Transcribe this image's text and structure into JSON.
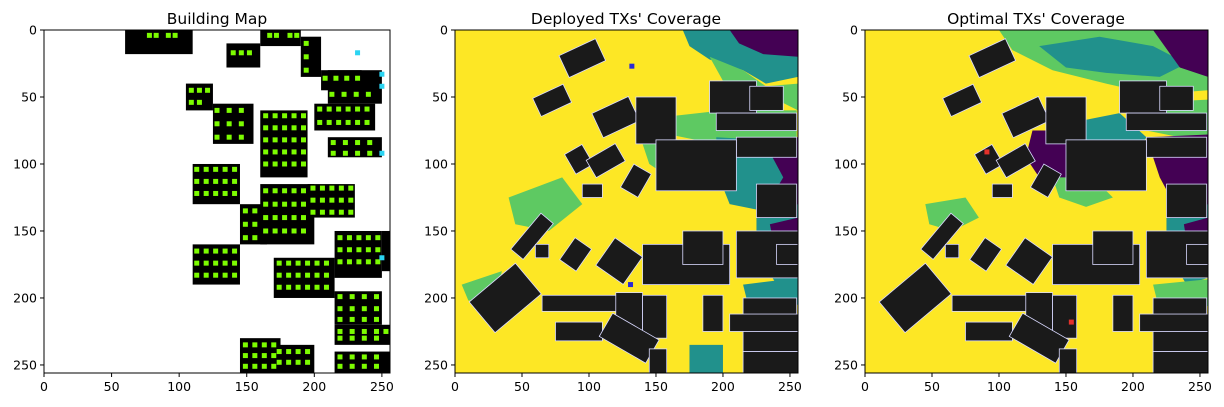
{
  "chart_data": [
    {
      "type": "heatmap",
      "title": "Building Map",
      "xlabel": "",
      "ylabel": "",
      "xlim": [
        0,
        256
      ],
      "ylim": [
        256,
        0
      ],
      "xticks": [
        0,
        50,
        100,
        150,
        200,
        250
      ],
      "yticks": [
        0,
        50,
        100,
        150,
        200,
        250
      ],
      "colors": {
        "background": "#ffffff",
        "building": "#000000",
        "candidate": "#7cfc00",
        "candidate_alt": "#2bd4f2"
      },
      "buildings": [
        [
          60,
          0,
          110,
          18
        ],
        [
          160,
          0,
          190,
          12
        ],
        [
          135,
          10,
          160,
          28
        ],
        [
          190,
          5,
          205,
          35
        ],
        [
          205,
          30,
          235,
          45
        ],
        [
          210,
          30,
          250,
          55
        ],
        [
          105,
          40,
          125,
          60
        ],
        [
          125,
          55,
          155,
          85
        ],
        [
          160,
          60,
          195,
          110
        ],
        [
          200,
          55,
          245,
          75
        ],
        [
          210,
          80,
          250,
          95
        ],
        [
          195,
          115,
          230,
          140
        ],
        [
          160,
          115,
          200,
          160
        ],
        [
          145,
          130,
          165,
          160
        ],
        [
          110,
          100,
          145,
          130
        ],
        [
          110,
          160,
          145,
          190
        ],
        [
          170,
          170,
          215,
          200
        ],
        [
          215,
          150,
          250,
          185
        ],
        [
          250,
          150,
          256,
          180
        ],
        [
          215,
          195,
          250,
          220
        ],
        [
          215,
          220,
          256,
          235
        ],
        [
          215,
          240,
          256,
          256
        ],
        [
          170,
          235,
          200,
          256
        ],
        [
          145,
          230,
          175,
          256
        ]
      ],
      "candidates": [
        [
          78,
          4
        ],
        [
          83,
          4
        ],
        [
          92,
          4
        ],
        [
          97,
          4
        ],
        [
          167,
          4
        ],
        [
          172,
          4
        ],
        [
          182,
          4
        ],
        [
          187,
          4
        ],
        [
          140,
          17
        ],
        [
          146,
          17
        ],
        [
          152,
          17
        ],
        [
          194,
          10
        ],
        [
          194,
          20
        ],
        [
          194,
          30
        ],
        [
          208,
          36
        ],
        [
          216,
          36
        ],
        [
          224,
          36
        ],
        [
          232,
          36
        ],
        [
          213,
          48
        ],
        [
          222,
          48
        ],
        [
          231,
          48
        ],
        [
          240,
          48
        ],
        [
          109,
          45
        ],
        [
          115,
          45
        ],
        [
          121,
          45
        ],
        [
          109,
          54
        ],
        [
          115,
          54
        ],
        [
          128,
          60
        ],
        [
          137,
          60
        ],
        [
          146,
          60
        ],
        [
          128,
          70
        ],
        [
          137,
          70
        ],
        [
          146,
          70
        ],
        [
          128,
          80
        ],
        [
          137,
          80
        ],
        [
          146,
          80
        ],
        [
          164,
          64
        ],
        [
          171,
          64
        ],
        [
          178,
          64
        ],
        [
          185,
          64
        ],
        [
          192,
          64
        ],
        [
          164,
          73
        ],
        [
          171,
          73
        ],
        [
          178,
          73
        ],
        [
          185,
          73
        ],
        [
          192,
          73
        ],
        [
          164,
          82
        ],
        [
          171,
          82
        ],
        [
          178,
          82
        ],
        [
          185,
          82
        ],
        [
          192,
          82
        ],
        [
          164,
          91
        ],
        [
          171,
          91
        ],
        [
          178,
          91
        ],
        [
          185,
          91
        ],
        [
          192,
          91
        ],
        [
          164,
          100
        ],
        [
          171,
          100
        ],
        [
          178,
          100
        ],
        [
          185,
          100
        ],
        [
          192,
          100
        ],
        [
          204,
          59
        ],
        [
          211,
          59
        ],
        [
          218,
          59
        ],
        [
          225,
          59
        ],
        [
          232,
          59
        ],
        [
          239,
          59
        ],
        [
          204,
          69
        ],
        [
          211,
          69
        ],
        [
          218,
          69
        ],
        [
          225,
          69
        ],
        [
          232,
          69
        ],
        [
          239,
          69
        ],
        [
          214,
          84
        ],
        [
          223,
          84
        ],
        [
          232,
          84
        ],
        [
          241,
          84
        ],
        [
          214,
          92
        ],
        [
          223,
          92
        ],
        [
          232,
          92
        ],
        [
          241,
          92
        ],
        [
          199,
          118
        ],
        [
          206,
          118
        ],
        [
          213,
          118
        ],
        [
          220,
          118
        ],
        [
          227,
          118
        ],
        [
          199,
          127
        ],
        [
          206,
          127
        ],
        [
          213,
          127
        ],
        [
          220,
          127
        ],
        [
          227,
          127
        ],
        [
          199,
          136
        ],
        [
          206,
          136
        ],
        [
          213,
          136
        ],
        [
          220,
          136
        ],
        [
          227,
          136
        ],
        [
          164,
          120
        ],
        [
          171,
          120
        ],
        [
          178,
          120
        ],
        [
          185,
          120
        ],
        [
          192,
          120
        ],
        [
          164,
          130
        ],
        [
          171,
          130
        ],
        [
          178,
          130
        ],
        [
          185,
          130
        ],
        [
          192,
          130
        ],
        [
          164,
          140
        ],
        [
          171,
          140
        ],
        [
          178,
          140
        ],
        [
          185,
          140
        ],
        [
          192,
          140
        ],
        [
          164,
          150
        ],
        [
          171,
          150
        ],
        [
          178,
          150
        ],
        [
          185,
          150
        ],
        [
          192,
          150
        ],
        [
          149,
          135
        ],
        [
          156,
          135
        ],
        [
          149,
          145
        ],
        [
          156,
          145
        ],
        [
          149,
          155
        ],
        [
          156,
          155
        ],
        [
          113,
          104
        ],
        [
          120,
          104
        ],
        [
          127,
          104
        ],
        [
          134,
          104
        ],
        [
          141,
          104
        ],
        [
          113,
          113
        ],
        [
          120,
          113
        ],
        [
          127,
          113
        ],
        [
          134,
          113
        ],
        [
          141,
          113
        ],
        [
          113,
          122
        ],
        [
          120,
          122
        ],
        [
          127,
          122
        ],
        [
          134,
          122
        ],
        [
          141,
          122
        ],
        [
          113,
          165
        ],
        [
          120,
          165
        ],
        [
          127,
          165
        ],
        [
          134,
          165
        ],
        [
          141,
          165
        ],
        [
          113,
          174
        ],
        [
          120,
          174
        ],
        [
          127,
          174
        ],
        [
          134,
          174
        ],
        [
          141,
          174
        ],
        [
          113,
          183
        ],
        [
          120,
          183
        ],
        [
          127,
          183
        ],
        [
          134,
          183
        ],
        [
          141,
          183
        ],
        [
          174,
          174
        ],
        [
          181,
          174
        ],
        [
          188,
          174
        ],
        [
          195,
          174
        ],
        [
          202,
          174
        ],
        [
          209,
          174
        ],
        [
          174,
          183
        ],
        [
          181,
          183
        ],
        [
          188,
          183
        ],
        [
          195,
          183
        ],
        [
          202,
          183
        ],
        [
          209,
          183
        ],
        [
          174,
          192
        ],
        [
          181,
          192
        ],
        [
          188,
          192
        ],
        [
          195,
          192
        ],
        [
          202,
          192
        ],
        [
          209,
          192
        ],
        [
          219,
          155
        ],
        [
          226,
          155
        ],
        [
          233,
          155
        ],
        [
          240,
          155
        ],
        [
          247,
          155
        ],
        [
          219,
          164
        ],
        [
          226,
          164
        ],
        [
          233,
          164
        ],
        [
          240,
          164
        ],
        [
          247,
          164
        ],
        [
          219,
          173
        ],
        [
          226,
          173
        ],
        [
          233,
          173
        ],
        [
          240,
          173
        ],
        [
          247,
          173
        ],
        [
          219,
          199
        ],
        [
          228,
          199
        ],
        [
          237,
          199
        ],
        [
          246,
          199
        ],
        [
          219,
          208
        ],
        [
          228,
          208
        ],
        [
          237,
          208
        ],
        [
          246,
          208
        ],
        [
          219,
          216
        ],
        [
          228,
          216
        ],
        [
          237,
          216
        ],
        [
          246,
          216
        ],
        [
          219,
          225
        ],
        [
          228,
          225
        ],
        [
          237,
          225
        ],
        [
          246,
          225
        ],
        [
          253,
          225
        ],
        [
          219,
          230
        ],
        [
          228,
          230
        ],
        [
          237,
          230
        ],
        [
          246,
          230
        ],
        [
          219,
          244
        ],
        [
          228,
          244
        ],
        [
          237,
          244
        ],
        [
          246,
          244
        ],
        [
          219,
          251
        ],
        [
          228,
          251
        ],
        [
          237,
          251
        ],
        [
          246,
          251
        ],
        [
          174,
          240
        ],
        [
          181,
          240
        ],
        [
          188,
          240
        ],
        [
          195,
          240
        ],
        [
          174,
          248
        ],
        [
          181,
          248
        ],
        [
          188,
          248
        ],
        [
          195,
          248
        ],
        [
          149,
          235
        ],
        [
          156,
          235
        ],
        [
          163,
          235
        ],
        [
          170,
          235
        ],
        [
          149,
          243
        ],
        [
          156,
          243
        ],
        [
          163,
          243
        ],
        [
          170,
          243
        ],
        [
          149,
          251
        ],
        [
          156,
          251
        ],
        [
          163,
          251
        ],
        [
          170,
          251
        ]
      ],
      "candidates_alt": [
        [
          232,
          17
        ],
        [
          250,
          33
        ],
        [
          250,
          42
        ],
        [
          250,
          92
        ],
        [
          250,
          170
        ]
      ]
    },
    {
      "type": "heatmap",
      "title": "Deployed TXs' Coverage",
      "xlabel": "",
      "ylabel": "",
      "xlim": [
        0,
        256
      ],
      "ylim": [
        256,
        0
      ],
      "xticks": [
        0,
        50,
        100,
        150,
        200,
        250
      ],
      "yticks": [
        0,
        50,
        100,
        150,
        200,
        250
      ],
      "colors": {
        "covered": "#fde725",
        "high": "#5ec962",
        "mid": "#21918c",
        "low": "#3b528b",
        "none": "#440154",
        "building": "#1a1a1a"
      },
      "transmitters": [
        [
          132,
          27
        ],
        [
          131,
          190
        ]
      ],
      "transmitter_color": "#2a2ad6"
    },
    {
      "type": "heatmap",
      "title": "Optimal TXs' Coverage",
      "xlabel": "",
      "ylabel": "",
      "xlim": [
        0,
        256
      ],
      "ylim": [
        256,
        0
      ],
      "xticks": [
        0,
        50,
        100,
        150,
        200,
        250
      ],
      "yticks": [
        0,
        50,
        100,
        150,
        200,
        250
      ],
      "colors": {
        "covered": "#fde725",
        "high": "#5ec962",
        "mid": "#21918c",
        "low": "#3b528b",
        "none": "#440154",
        "building": "#1a1a1a"
      },
      "transmitters": [
        [
          91,
          91
        ],
        [
          154,
          218
        ]
      ],
      "transmitter_color": "#e3312b"
    }
  ]
}
